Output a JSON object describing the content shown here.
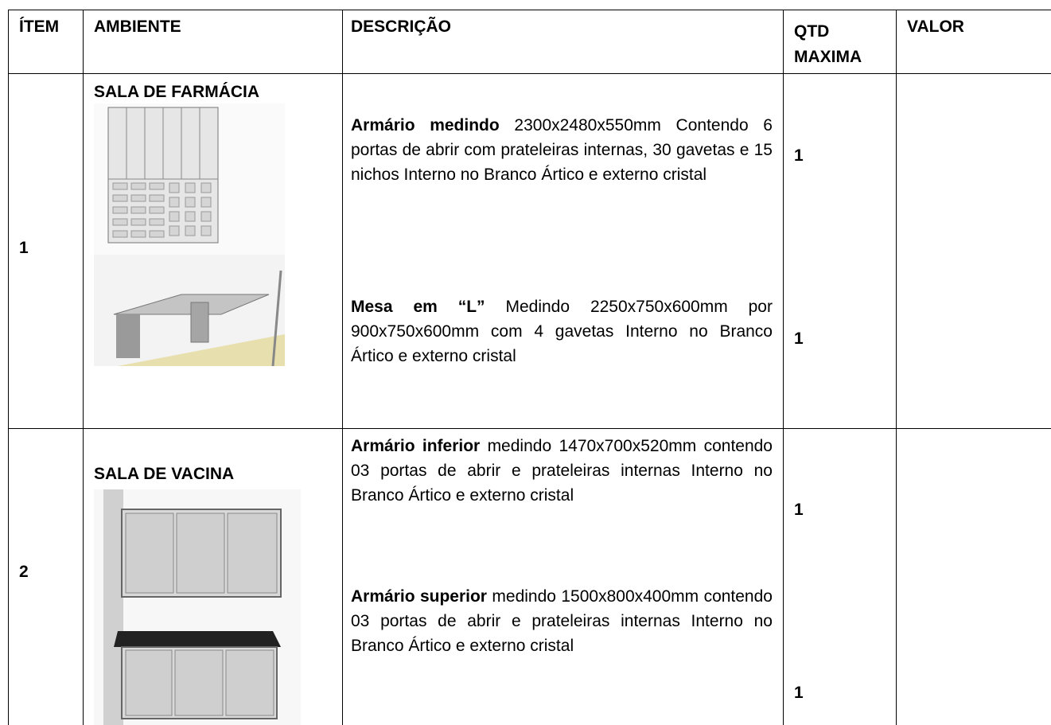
{
  "table": {
    "headers": [
      "ÍTEM",
      "AMBIENTE",
      "DESCRIÇÃO",
      "QTD MAXIMA",
      "VALOR"
    ],
    "rows": [
      {
        "item": "1",
        "ambiente": "SALA DE FARMÁCIA",
        "descriptions": [
          {
            "bold": "Armário medindo",
            "text": "2300x2480x550mm Contendo 6 portas de abrir com prateleiras internas, 30 gavetas e 15 nichos Interno no Branco Ártico e externo cristal"
          },
          {
            "bold": "Mesa em “L”",
            "text": "Medindo 2250x750x600mm por 900x750x600mm com 4 gavetas Interno no Branco Ártico e externo cristal"
          }
        ],
        "qty": [
          "1",
          "1"
        ]
      },
      {
        "item": "2",
        "ambiente": "SALA DE VACINA",
        "descriptions": [
          {
            "bold": "Armário inferior",
            "text": "medindo 1470x700x520mm contendo 03 portas de abrir e prateleiras internas Interno no Branco Ártico e externo cristal"
          },
          {
            "bold": "Armário superior",
            "text": "medindo 1500x800x400mm contendo 03 portas de abrir e prateleiras internas Interno no Branco Ártico e externo cristal"
          }
        ],
        "qty": [
          "1",
          "1"
        ]
      }
    ]
  }
}
